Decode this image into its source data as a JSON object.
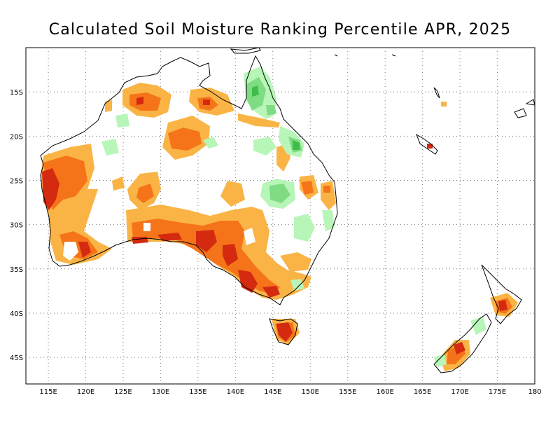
{
  "title": "Calculated Soil Moisture Ranking Percentile APR, 2025",
  "map": {
    "lon_range": [
      112,
      180
    ],
    "lat_range": [
      -48,
      -10
    ],
    "lon_ticks": [
      "115E",
      "120E",
      "125E",
      "130E",
      "135E",
      "140E",
      "145E",
      "150E",
      "155E",
      "160E",
      "165E",
      "170E",
      "175E",
      "180"
    ],
    "lat_ticks": [
      "15S",
      "20S",
      "25S",
      "30S",
      "35S",
      "40S",
      "45S"
    ],
    "gridlines": "dotted",
    "colors": {
      "very_dry": "#d42a10",
      "dry": "#f5741a",
      "moderately_dry": "#fab446",
      "moderately_wet": "#b8f5b8",
      "wet": "#7fdc82",
      "very_wet": "#3fbd48",
      "coastline": "#000000"
    }
  }
}
